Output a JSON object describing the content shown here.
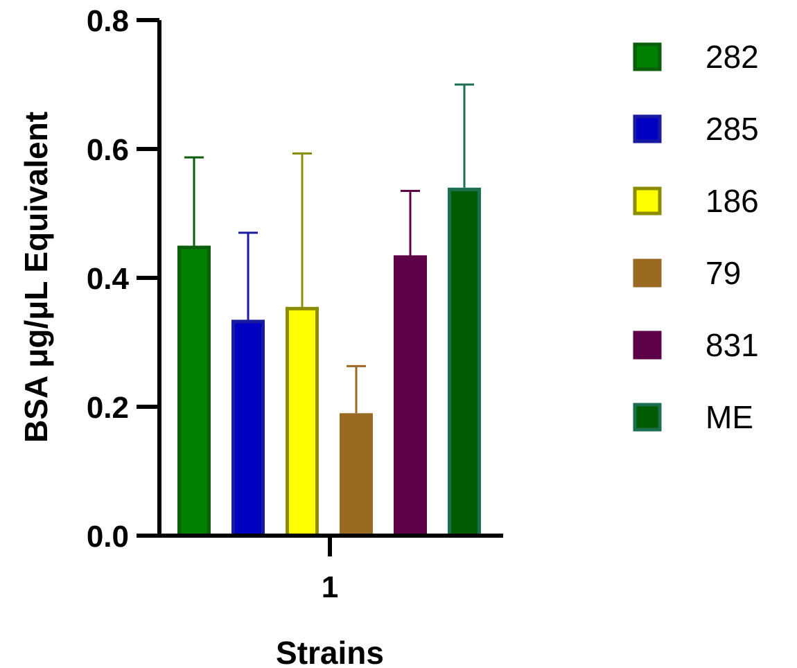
{
  "chart_data": {
    "type": "bar",
    "xlabel": "Strains",
    "ylabel": "BSA μg/μL Equivalent",
    "ylim": [
      0,
      0.8
    ],
    "yticks": [
      "0.0",
      "0.2",
      "0.4",
      "0.6",
      "0.8"
    ],
    "categories": [
      "1"
    ],
    "legend_position": "right",
    "grid": false,
    "series": [
      {
        "name": "282",
        "values": [
          0.45
        ],
        "error": [
          0.137
        ],
        "fill": "#008000",
        "stroke": "#0b5e0b"
      },
      {
        "name": "285",
        "values": [
          0.335
        ],
        "error": [
          0.135
        ],
        "fill": "#0000c0",
        "stroke": "#1a1aa0"
      },
      {
        "name": "186",
        "values": [
          0.355
        ],
        "error": [
          0.238
        ],
        "fill": "#ffff00",
        "stroke": "#8c8c00"
      },
      {
        "name": "79",
        "values": [
          0.19
        ],
        "error": [
          0.073
        ],
        "fill": "#9b6a22",
        "stroke": "#9b6a22"
      },
      {
        "name": "831",
        "values": [
          0.435
        ],
        "error": [
          0.1
        ],
        "fill": "#5e0048",
        "stroke": "#5e0048"
      },
      {
        "name": "ME",
        "values": [
          0.54
        ],
        "error": [
          0.16
        ],
        "fill": "#005c00",
        "stroke": "#1b6e4e"
      }
    ]
  }
}
